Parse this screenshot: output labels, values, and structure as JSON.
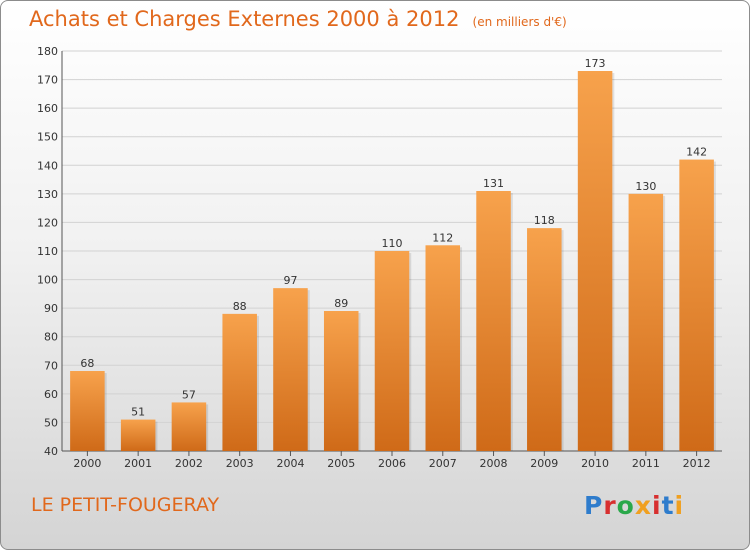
{
  "header": {
    "title": "Achats et Charges Externes 2000 à 2012",
    "unit": "(en milliers d'€)"
  },
  "footer": {
    "place": "LE PETIT-FOUGERAY",
    "brand": "Proxiti"
  },
  "colors": {
    "bar_light": "#f7a24c",
    "bar_dark": "#cf6a18",
    "title": "#e1681c",
    "grid": "#d2d2d2"
  },
  "chart_data": {
    "type": "bar",
    "title": "Achats et Charges Externes 2000 à 2012",
    "xlabel": "",
    "ylabel": "",
    "categories": [
      "2000",
      "2001",
      "2002",
      "2003",
      "2004",
      "2005",
      "2006",
      "2007",
      "2008",
      "2009",
      "2010",
      "2011",
      "2012"
    ],
    "values": [
      68,
      51,
      57,
      88,
      97,
      89,
      110,
      112,
      131,
      118,
      173,
      130,
      142
    ],
    "ylim": [
      40,
      180
    ],
    "yticks": [
      40,
      50,
      60,
      70,
      80,
      90,
      100,
      110,
      120,
      130,
      140,
      150,
      160,
      170,
      180
    ],
    "grid": true,
    "data_labels": true
  }
}
